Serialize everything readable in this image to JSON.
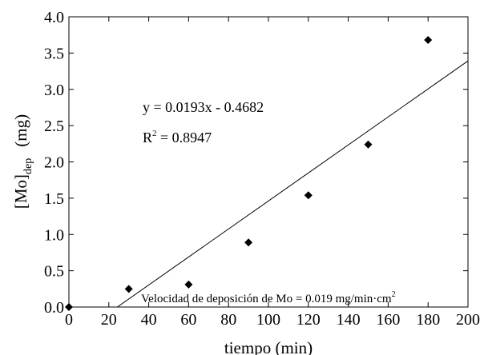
{
  "chart_data": {
    "type": "scatter",
    "x_label": "tiempo (min)",
    "y_label": {
      "main": "[Mo]",
      "subscript": "dep",
      "unit": "(mg)"
    },
    "xlim": [
      0,
      200
    ],
    "ylim": [
      0,
      4.0
    ],
    "x_ticks": [
      0,
      20,
      40,
      60,
      80,
      100,
      120,
      140,
      160,
      180,
      200
    ],
    "y_ticks": [
      0.0,
      0.5,
      1.0,
      1.5,
      2.0,
      2.5,
      3.0,
      3.5,
      4.0
    ],
    "x_tick_labels": [
      "0",
      "20",
      "40",
      "60",
      "80",
      "100",
      "120",
      "140",
      "160",
      "180",
      "200"
    ],
    "y_tick_labels": [
      "0.0",
      "0.5",
      "1.0",
      "1.5",
      "2.0",
      "2.5",
      "3.0",
      "3.5",
      "4.0"
    ],
    "grid": false,
    "series": [
      {
        "marker": "diamond",
        "points": [
          {
            "x": 0,
            "y": 0.0
          },
          {
            "x": 30,
            "y": 0.25
          },
          {
            "x": 60,
            "y": 0.31
          },
          {
            "x": 90,
            "y": 0.89
          },
          {
            "x": 120,
            "y": 1.54
          },
          {
            "x": 150,
            "y": 2.24
          },
          {
            "x": 180,
            "y": 3.68
          }
        ]
      }
    ],
    "trendline": {
      "slope": 0.0193,
      "intercept": -0.4682
    },
    "annotations": {
      "equation": "y = 0.0193x - 0.4682",
      "r2_prefix": "R",
      "r2_exp": "2",
      "r2_value": " = 0.8947",
      "note": "Velocidad de deposición de Mo = 0.019 mg/min·cm",
      "note_exp": "2"
    }
  }
}
